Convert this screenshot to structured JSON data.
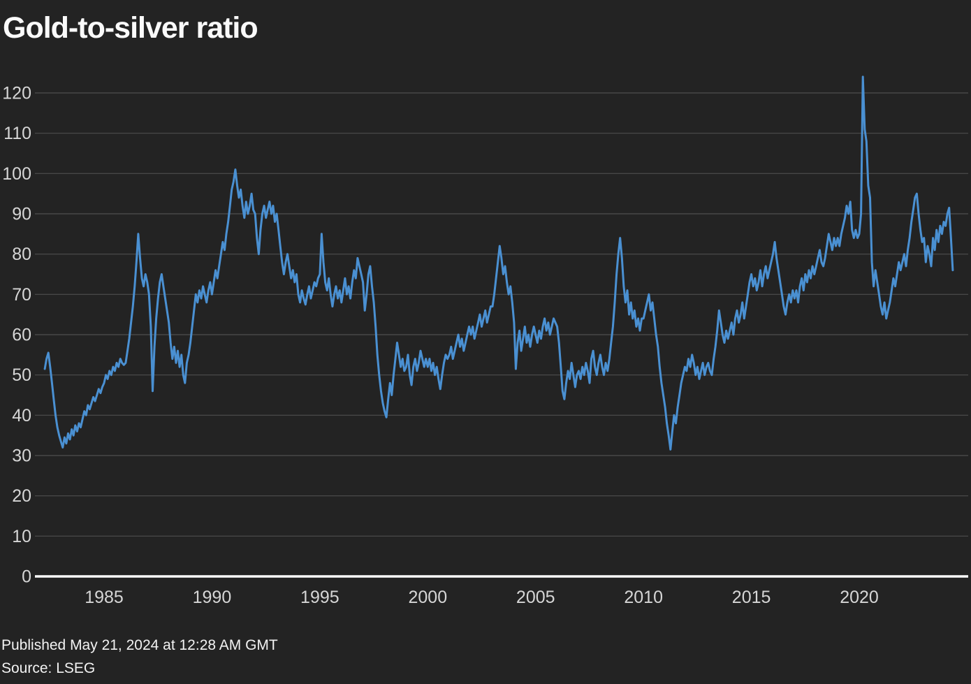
{
  "colors": {
    "background": "#232323",
    "line": "#4a90d2",
    "gridline": "#4e4e4e",
    "axis_line": "#ffffff",
    "tick_label": "#d6d6d6",
    "title": "#fafafa",
    "footer": "#f2f2f2"
  },
  "footer": {
    "published": "Published May 21, 2024 at 12:28 AM GMT",
    "source": "Source: LSEG"
  },
  "chart_data": {
    "type": "line",
    "title": "Gold-to-silver ratio",
    "xlabel": "",
    "ylabel": "",
    "grid": "horizontal",
    "legend": "none",
    "ylim": [
      0,
      124
    ],
    "x_range": [
      1982.25,
      2024.42
    ],
    "y_ticks": [
      0,
      10,
      20,
      30,
      40,
      50,
      60,
      70,
      80,
      90,
      100,
      110,
      120
    ],
    "x_ticks": [
      1985,
      1990,
      1995,
      2000,
      2005,
      2010,
      2015,
      2020
    ],
    "series": [
      {
        "name": "Gold-to-silver ratio",
        "frequency": "monthly",
        "start_year": 1982,
        "start_month": 4,
        "end_year": 2024,
        "end_month": 5,
        "values": [
          51.5,
          54,
          55.5,
          52,
          48,
          44,
          40,
          37,
          35,
          33.5,
          32,
          34.5,
          33,
          35.5,
          34,
          36.5,
          35,
          37.5,
          36,
          38,
          37,
          39,
          41,
          40,
          42.5,
          41.5,
          43,
          44.5,
          43.5,
          45,
          46.5,
          45.5,
          47,
          48,
          50,
          49,
          51,
          50,
          52,
          51,
          53,
          52,
          54,
          53,
          52.5,
          53,
          56,
          59,
          63,
          67,
          72,
          78,
          85,
          79,
          74,
          72,
          75,
          73,
          70,
          62,
          46,
          57,
          64,
          69,
          73,
          75,
          72,
          69,
          66,
          63,
          58,
          54,
          57,
          53,
          56,
          52,
          55,
          50,
          48,
          53,
          55,
          58,
          62,
          66,
          70,
          68,
          71,
          69,
          72,
          70,
          68,
          71,
          73,
          70,
          73,
          76,
          74,
          77,
          80,
          83,
          81,
          85,
          88,
          92,
          96,
          98,
          101,
          97,
          94,
          96,
          92,
          89,
          93,
          90,
          92,
          95,
          91,
          90,
          84,
          80,
          86,
          90,
          92,
          89,
          91,
          93,
          90,
          92,
          88,
          90,
          86,
          82,
          78,
          75,
          78,
          80,
          77,
          74,
          76,
          73,
          75,
          70,
          68,
          71,
          69,
          67.5,
          70,
          72,
          69,
          71,
          73,
          72,
          74,
          75,
          85,
          78,
          73,
          71,
          74,
          70,
          67,
          70,
          72,
          69,
          71,
          68,
          71,
          74,
          70,
          72,
          69,
          73,
          76,
          74,
          79,
          77,
          75,
          73,
          66,
          70,
          75,
          77,
          72,
          68,
          62,
          55,
          50,
          46,
          43,
          41,
          39.5,
          44,
          48,
          45,
          50,
          54,
          58,
          55,
          52,
          54,
          51,
          52,
          55,
          50,
          47.5,
          52,
          54,
          51,
          53,
          56,
          54,
          52,
          54,
          52,
          54,
          51,
          53,
          50,
          52,
          49,
          46.5,
          50,
          53,
          55,
          54,
          55,
          57,
          54,
          56,
          58,
          60,
          57,
          59,
          56,
          58,
          60,
          62,
          60,
          62,
          59,
          61,
          63,
          65,
          62,
          64,
          66,
          63,
          65,
          67,
          67,
          70,
          74,
          78,
          82,
          79,
          75,
          77,
          73,
          70,
          72,
          68,
          63,
          51.5,
          58,
          61,
          56,
          59,
          62,
          58,
          60,
          57,
          60,
          62,
          60,
          58,
          61,
          59,
          62,
          64,
          61,
          63,
          60,
          62,
          64,
          63,
          62,
          58,
          52,
          46,
          44,
          48,
          51,
          49,
          53,
          50,
          47,
          50,
          51,
          49,
          52,
          50,
          53,
          51,
          48,
          54,
          56,
          52,
          50,
          53,
          55,
          52,
          50,
          53,
          51,
          54,
          58,
          62,
          68,
          75,
          80,
          84,
          79,
          72,
          68,
          71,
          65,
          68,
          64,
          66,
          62,
          64,
          61,
          64,
          64,
          66,
          68,
          70,
          66,
          68,
          64,
          60,
          57,
          52,
          48,
          45,
          42,
          38,
          35,
          31.5,
          36,
          40,
          38,
          42,
          45,
          48,
          50,
          52,
          51,
          54,
          52,
          55,
          53,
          50,
          52,
          49,
          51,
          53,
          50,
          52,
          53,
          51,
          50,
          54,
          57,
          61,
          66,
          63,
          60,
          58,
          61,
          59,
          61,
          63,
          60,
          64,
          66,
          63,
          65,
          68,
          64,
          67,
          70,
          73,
          75,
          72,
          74,
          71,
          73,
          76,
          72,
          75,
          77,
          74,
          76,
          78,
          80,
          83,
          79,
          76,
          73,
          70,
          67,
          65,
          68,
          70,
          68,
          71,
          69,
          71,
          68,
          72,
          74,
          71,
          75,
          73,
          76,
          74,
          77,
          75,
          77,
          79,
          81,
          78,
          77,
          79,
          82,
          85,
          83,
          81,
          84,
          82,
          84,
          82,
          85,
          87,
          89,
          92,
          90,
          93,
          86,
          84,
          86,
          84,
          85,
          90,
          124,
          111,
          108,
          97,
          94,
          78,
          72,
          76,
          73,
          70,
          67,
          65,
          68,
          64,
          66,
          68,
          71,
          74,
          72,
          75,
          78,
          76,
          78,
          80,
          77,
          81,
          84,
          88,
          91,
          94,
          95,
          90,
          86,
          83,
          84,
          78,
          82,
          80,
          77,
          84,
          81,
          86,
          83,
          87,
          85,
          88,
          87,
          90,
          91.5,
          84,
          76
        ]
      }
    ]
  }
}
